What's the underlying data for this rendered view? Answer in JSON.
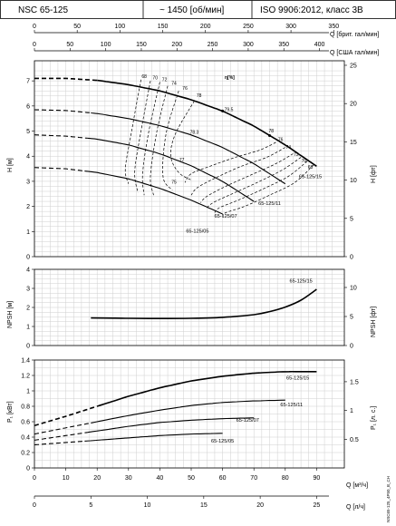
{
  "header": {
    "model": "NSC 65-125",
    "speed": "~ 1450 [об/мин]",
    "standard": "ISO 9906:2012, класс 3B"
  },
  "side_code": "NSC65-125_4P50_B_CH",
  "colors": {
    "line": "#000000",
    "grid": "#cfcfcf",
    "background": "#ffffff"
  },
  "chart_data": [
    {
      "id": "top_axes",
      "type": "line",
      "axes": [
        {
          "label": "Q [брит. гал/мин]",
          "ticks": [
            0,
            50,
            100,
            150,
            200,
            250,
            300,
            350
          ]
        },
        {
          "label": "Q [США гал/мин]",
          "ticks": [
            0,
            50,
            100,
            150,
            200,
            250,
            300,
            350,
            400
          ]
        }
      ]
    },
    {
      "id": "head",
      "type": "line",
      "ylabel": "H [м]",
      "y2label": "H [фт]",
      "xlim": [
        0,
        95
      ],
      "ylim": [
        0,
        7.8
      ],
      "yticks": [
        0,
        1,
        2,
        3,
        4,
        5,
        6,
        7
      ],
      "y2ticks": [
        0,
        5,
        10,
        15,
        20,
        25
      ],
      "efficiency_title": "η[%]",
      "series": [
        {
          "name": "65-125/15",
          "x": [
            0,
            10,
            20,
            30,
            40,
            50,
            60,
            70,
            80,
            90
          ],
          "y": [
            7.1,
            7.1,
            7.02,
            6.85,
            6.6,
            6.25,
            5.8,
            5.2,
            4.45,
            3.6
          ],
          "dashed_until": 20
        },
        {
          "name": "65-125/11",
          "x": [
            0,
            10,
            20,
            30,
            40,
            50,
            60,
            70,
            80
          ],
          "y": [
            5.85,
            5.82,
            5.7,
            5.5,
            5.22,
            4.85,
            4.35,
            3.7,
            2.9
          ],
          "dashed_until": 18
        },
        {
          "name": "65-125/07",
          "x": [
            0,
            10,
            20,
            30,
            40,
            50,
            60,
            70
          ],
          "y": [
            4.85,
            4.8,
            4.68,
            4.45,
            4.1,
            3.62,
            3.0,
            2.2
          ],
          "dashed_until": 17
        },
        {
          "name": "65-125/05",
          "x": [
            0,
            10,
            20,
            30,
            40,
            50,
            60
          ],
          "y": [
            3.55,
            3.5,
            3.35,
            3.1,
            2.72,
            2.25,
            1.7
          ],
          "dashed_until": 16
        }
      ],
      "efficiency_labels": [
        "68",
        "70",
        "72",
        "74",
        "76",
        "78",
        "79.5",
        "78.3",
        "77",
        "75",
        "78",
        "76",
        "74",
        "72",
        "70",
        "68"
      ],
      "efficiency_iso": [
        {
          "x": [
            34,
            31,
            29,
            30
          ],
          "y": [
            7.05,
            5.0,
            3.5,
            2.9
          ]
        },
        {
          "x": [
            37,
            34,
            32,
            33
          ],
          "y": [
            7.0,
            5.0,
            3.4,
            2.55
          ]
        },
        {
          "x": [
            40,
            36.5,
            34.5,
            35
          ],
          "y": [
            6.95,
            5.0,
            3.3,
            2.45
          ]
        },
        {
          "x": [
            42.5,
            39,
            37,
            38
          ],
          "y": [
            6.8,
            4.95,
            3.2,
            2.45
          ]
        },
        {
          "x": [
            46,
            42,
            41,
            44
          ],
          "y": [
            6.6,
            4.9,
            3.2,
            2.65
          ]
        },
        {
          "x": [
            51,
            45,
            43.5,
            46,
            50
          ],
          "y": [
            6.2,
            4.9,
            4.0,
            3.35,
            3.05
          ]
        },
        {
          "x": [
            77,
            72,
            64,
            56,
            50,
            48
          ],
          "y": [
            4.55,
            4.25,
            3.95,
            3.6,
            3.3,
            2.95
          ]
        },
        {
          "x": [
            80,
            74,
            66,
            58,
            52,
            50
          ],
          "y": [
            4.35,
            3.95,
            3.6,
            3.15,
            2.75,
            2.45
          ]
        },
        {
          "x": [
            82.5,
            77,
            69,
            61,
            55,
            53
          ],
          "y": [
            4.1,
            3.7,
            3.25,
            2.8,
            2.4,
            2.15
          ]
        },
        {
          "x": [
            85,
            79,
            71,
            63,
            57,
            55
          ],
          "y": [
            3.95,
            3.45,
            2.95,
            2.5,
            2.15,
            1.95
          ]
        },
        {
          "x": [
            87,
            81,
            73,
            65,
            59,
            57.5
          ],
          "y": [
            3.8,
            3.2,
            2.7,
            2.25,
            1.95,
            1.75
          ]
        },
        {
          "x": [
            89,
            83,
            75,
            67,
            61,
            60
          ],
          "y": [
            3.65,
            2.95,
            2.45,
            2.0,
            1.75,
            1.6
          ]
        }
      ]
    },
    {
      "id": "npsh",
      "type": "line",
      "ylabel": "NPSH [м]",
      "y2label": "NPSH [фт]",
      "xlim": [
        0,
        95
      ],
      "ylim": [
        0,
        4
      ],
      "yticks": [
        0,
        1,
        2,
        3,
        4
      ],
      "y2ticks": [
        0,
        5,
        10
      ],
      "series": [
        {
          "name": "65-125/15",
          "x": [
            18,
            25,
            30,
            40,
            50,
            60,
            70,
            75,
            80,
            85,
            90
          ],
          "y": [
            1.45,
            1.44,
            1.43,
            1.42,
            1.43,
            1.48,
            1.62,
            1.78,
            2.02,
            2.38,
            2.95
          ]
        }
      ]
    },
    {
      "id": "power",
      "type": "line",
      "ylabel": "P₁ [кВт]",
      "y2label": "P₁ [л. с.]",
      "xlabel": "Q [м³/ч]",
      "x2label": "Q [л/ч]",
      "xlim": [
        0,
        95
      ],
      "ylim": [
        0,
        1.4
      ],
      "yticks": [
        0,
        0.2,
        0.4,
        0.6,
        0.8,
        1,
        1.2,
        1.4
      ],
      "y2ticks": [
        0.5,
        1,
        1.5
      ],
      "xticks": [
        0,
        10,
        20,
        30,
        40,
        50,
        60,
        70,
        80,
        90
      ],
      "x2ticks": [
        0,
        5,
        10,
        15,
        20,
        25
      ],
      "series": [
        {
          "name": "65-125/15",
          "x": [
            0,
            10,
            20,
            30,
            40,
            50,
            60,
            70,
            80,
            90
          ],
          "y": [
            0.55,
            0.67,
            0.8,
            0.93,
            1.04,
            1.13,
            1.19,
            1.23,
            1.25,
            1.25
          ],
          "dashed_until": 20
        },
        {
          "name": "65-125/11",
          "x": [
            0,
            10,
            20,
            30,
            40,
            50,
            60,
            70,
            80
          ],
          "y": [
            0.44,
            0.52,
            0.6,
            0.68,
            0.75,
            0.81,
            0.85,
            0.87,
            0.88
          ],
          "dashed_until": 18
        },
        {
          "name": "65-125/07",
          "x": [
            0,
            10,
            20,
            30,
            40,
            50,
            60,
            70
          ],
          "y": [
            0.36,
            0.42,
            0.48,
            0.54,
            0.59,
            0.62,
            0.64,
            0.65
          ],
          "dashed_until": 17
        },
        {
          "name": "65-125/05",
          "x": [
            0,
            10,
            20,
            30,
            40,
            50,
            60
          ],
          "y": [
            0.3,
            0.33,
            0.36,
            0.39,
            0.42,
            0.44,
            0.45
          ],
          "dashed_until": 16
        }
      ]
    }
  ]
}
